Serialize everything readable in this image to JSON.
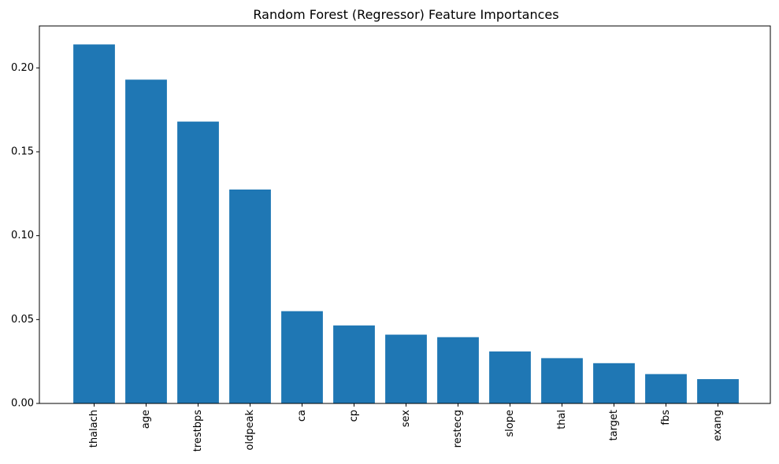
{
  "chart_data": {
    "type": "bar",
    "title": "Random Forest (Regressor) Feature Importances",
    "xlabel": "",
    "ylabel": "",
    "categories": [
      "thalach",
      "age",
      "trestbps",
      "oldpeak",
      "ca",
      "cp",
      "sex",
      "restecg",
      "slope",
      "thal",
      "target",
      "fbs",
      "exang"
    ],
    "values": [
      0.214,
      0.193,
      0.168,
      0.1275,
      0.055,
      0.0465,
      0.041,
      0.0395,
      0.031,
      0.027,
      0.024,
      0.0175,
      0.0145
    ],
    "ylim": [
      0,
      0.225
    ],
    "yticks": [
      0.0,
      0.05,
      0.1,
      0.15,
      0.2
    ],
    "ytick_labels": [
      "0.00",
      "0.05",
      "0.10",
      "0.15",
      "0.20"
    ],
    "bar_color": "#1f77b4",
    "grid": false,
    "legend": "none"
  }
}
